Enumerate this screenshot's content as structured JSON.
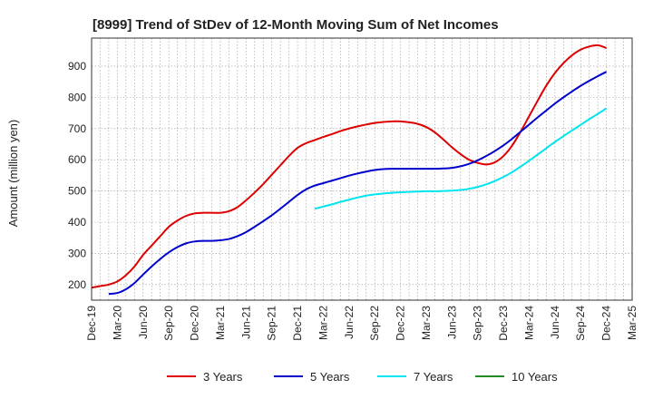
{
  "chart_data": {
    "type": "line",
    "title": "[8999]  Trend of StDev of 12-Month Moving Sum of Net Incomes",
    "ylabel": "Amount (million yen)",
    "xlabel": "",
    "ylim": [
      150,
      990
    ],
    "yticks": [
      200,
      300,
      400,
      500,
      600,
      700,
      800,
      900
    ],
    "xlim": [
      "2019-12",
      "2025-03"
    ],
    "xticks": [
      "Dec-19",
      "Mar-20",
      "Jun-20",
      "Sep-20",
      "Dec-20",
      "Mar-21",
      "Jun-21",
      "Sep-21",
      "Dec-21",
      "Mar-22",
      "Jun-22",
      "Sep-22",
      "Dec-22",
      "Mar-23",
      "Jun-23",
      "Sep-23",
      "Dec-23",
      "Mar-24",
      "Jun-24",
      "Sep-24",
      "Dec-24",
      "Mar-25"
    ],
    "grid": true,
    "legend_position": "bottom",
    "series": [
      {
        "name": "3 Years",
        "color": "#dd0000",
        "points": [
          [
            "2019-12",
            190
          ],
          [
            "2020-01",
            195
          ],
          [
            "2020-02",
            200
          ],
          [
            "2020-03",
            210
          ],
          [
            "2020-04",
            230
          ],
          [
            "2020-05",
            258
          ],
          [
            "2020-06",
            295
          ],
          [
            "2020-07",
            325
          ],
          [
            "2020-08",
            355
          ],
          [
            "2020-09",
            385
          ],
          [
            "2020-10",
            405
          ],
          [
            "2020-11",
            420
          ],
          [
            "2020-12",
            428
          ],
          [
            "2021-01",
            430
          ],
          [
            "2021-02",
            430
          ],
          [
            "2021-03",
            430
          ],
          [
            "2021-04",
            435
          ],
          [
            "2021-05",
            448
          ],
          [
            "2021-06",
            470
          ],
          [
            "2021-07",
            495
          ],
          [
            "2021-08",
            522
          ],
          [
            "2021-09",
            552
          ],
          [
            "2021-10",
            582
          ],
          [
            "2021-11",
            612
          ],
          [
            "2021-12",
            638
          ],
          [
            "2022-01",
            653
          ],
          [
            "2022-02",
            663
          ],
          [
            "2022-03",
            673
          ],
          [
            "2022-04",
            682
          ],
          [
            "2022-05",
            692
          ],
          [
            "2022-06",
            700
          ],
          [
            "2022-07",
            707
          ],
          [
            "2022-08",
            713
          ],
          [
            "2022-09",
            718
          ],
          [
            "2022-10",
            721
          ],
          [
            "2022-11",
            723
          ],
          [
            "2022-12",
            723
          ],
          [
            "2023-01",
            720
          ],
          [
            "2023-02",
            715
          ],
          [
            "2023-03",
            705
          ],
          [
            "2023-04",
            688
          ],
          [
            "2023-05",
            665
          ],
          [
            "2023-06",
            640
          ],
          [
            "2023-07",
            618
          ],
          [
            "2023-08",
            600
          ],
          [
            "2023-09",
            590
          ],
          [
            "2023-10",
            585
          ],
          [
            "2023-11",
            592
          ],
          [
            "2023-12",
            612
          ],
          [
            "2024-01",
            645
          ],
          [
            "2024-02",
            690
          ],
          [
            "2024-03",
            740
          ],
          [
            "2024-04",
            790
          ],
          [
            "2024-05",
            838
          ],
          [
            "2024-06",
            878
          ],
          [
            "2024-07",
            910
          ],
          [
            "2024-08",
            935
          ],
          [
            "2024-09",
            953
          ],
          [
            "2024-10",
            963
          ],
          [
            "2024-11",
            967
          ],
          [
            "2024-12",
            958
          ]
        ]
      },
      {
        "name": "5 Years",
        "color": "#0000cc",
        "points": [
          [
            "2020-02",
            170
          ],
          [
            "2020-03",
            173
          ],
          [
            "2020-04",
            185
          ],
          [
            "2020-05",
            205
          ],
          [
            "2020-06",
            232
          ],
          [
            "2020-07",
            258
          ],
          [
            "2020-08",
            282
          ],
          [
            "2020-09",
            303
          ],
          [
            "2020-10",
            320
          ],
          [
            "2020-11",
            332
          ],
          [
            "2020-12",
            338
          ],
          [
            "2021-01",
            340
          ],
          [
            "2021-02",
            340
          ],
          [
            "2021-03",
            342
          ],
          [
            "2021-04",
            346
          ],
          [
            "2021-05",
            355
          ],
          [
            "2021-06",
            368
          ],
          [
            "2021-07",
            385
          ],
          [
            "2021-08",
            403
          ],
          [
            "2021-09",
            422
          ],
          [
            "2021-10",
            443
          ],
          [
            "2021-11",
            465
          ],
          [
            "2021-12",
            487
          ],
          [
            "2022-01",
            505
          ],
          [
            "2022-02",
            517
          ],
          [
            "2022-03",
            525
          ],
          [
            "2022-04",
            533
          ],
          [
            "2022-05",
            541
          ],
          [
            "2022-06",
            549
          ],
          [
            "2022-07",
            556
          ],
          [
            "2022-08",
            562
          ],
          [
            "2022-09",
            567
          ],
          [
            "2022-10",
            570
          ],
          [
            "2022-11",
            571
          ],
          [
            "2022-12",
            571
          ],
          [
            "2023-01",
            571
          ],
          [
            "2023-02",
            571
          ],
          [
            "2023-03",
            571
          ],
          [
            "2023-04",
            571
          ],
          [
            "2023-05",
            572
          ],
          [
            "2023-06",
            574
          ],
          [
            "2023-07",
            579
          ],
          [
            "2023-08",
            587
          ],
          [
            "2023-09",
            598
          ],
          [
            "2023-10",
            612
          ],
          [
            "2023-11",
            628
          ],
          [
            "2023-12",
            646
          ],
          [
            "2024-01",
            667
          ],
          [
            "2024-02",
            690
          ],
          [
            "2024-03",
            713
          ],
          [
            "2024-04",
            736
          ],
          [
            "2024-05",
            758
          ],
          [
            "2024-06",
            780
          ],
          [
            "2024-07",
            800
          ],
          [
            "2024-08",
            819
          ],
          [
            "2024-09",
            837
          ],
          [
            "2024-10",
            853
          ],
          [
            "2024-11",
            868
          ],
          [
            "2024-12",
            882
          ]
        ]
      },
      {
        "name": "7 Years",
        "color": "#00e5ee",
        "points": [
          [
            "2022-02",
            443
          ],
          [
            "2022-03",
            450
          ],
          [
            "2022-04",
            457
          ],
          [
            "2022-05",
            465
          ],
          [
            "2022-06",
            472
          ],
          [
            "2022-07",
            479
          ],
          [
            "2022-08",
            485
          ],
          [
            "2022-09",
            489
          ],
          [
            "2022-10",
            492
          ],
          [
            "2022-11",
            494
          ],
          [
            "2022-12",
            496
          ],
          [
            "2023-01",
            497
          ],
          [
            "2023-02",
            498
          ],
          [
            "2023-03",
            499
          ],
          [
            "2023-04",
            499
          ],
          [
            "2023-05",
            500
          ],
          [
            "2023-06",
            501
          ],
          [
            "2023-07",
            503
          ],
          [
            "2023-08",
            507
          ],
          [
            "2023-09",
            513
          ],
          [
            "2023-10",
            521
          ],
          [
            "2023-11",
            532
          ],
          [
            "2023-12",
            545
          ],
          [
            "2024-01",
            560
          ],
          [
            "2024-02",
            578
          ],
          [
            "2024-03",
            597
          ],
          [
            "2024-04",
            617
          ],
          [
            "2024-05",
            637
          ],
          [
            "2024-06",
            657
          ],
          [
            "2024-07",
            676
          ],
          [
            "2024-08",
            694
          ],
          [
            "2024-09",
            712
          ],
          [
            "2024-10",
            730
          ],
          [
            "2024-11",
            747
          ],
          [
            "2024-12",
            765
          ]
        ]
      },
      {
        "name": "10 Years",
        "color": "#228b22",
        "points": []
      }
    ]
  }
}
